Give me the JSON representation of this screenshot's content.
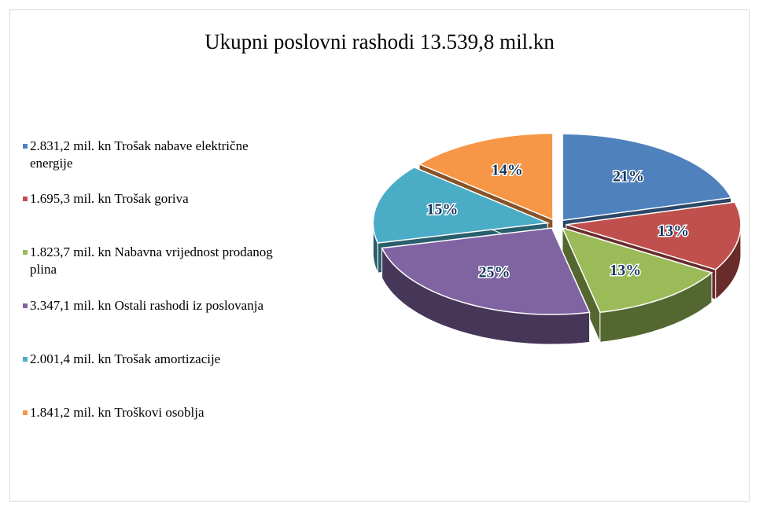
{
  "chart_data": {
    "type": "pie",
    "title": "Ukupni poslovni rashodi 13.539,8 mil.kn",
    "categories": [
      "2.831,2 mil. kn Trošak nabave električne energije",
      "1.695,3 mil. kn Trošak goriva",
      "1.823,7 mil. kn Nabavna vrijednost prodanog plina",
      "3.347,1 mil. kn Ostali rashodi iz poslovanja",
      "2.001,4 mil. kn Trošak amortizacije",
      "1.841,2 mil. kn Troškovi osoblja"
    ],
    "values": [
      21,
      13,
      13,
      25,
      15,
      14
    ],
    "value_labels": [
      "21%",
      "13%",
      "13%",
      "25%",
      "15%",
      "14%"
    ],
    "colors": [
      "#4f81bd",
      "#c0504d",
      "#9bbb59",
      "#8064a2",
      "#4bacc6",
      "#f79646"
    ],
    "legend": "left"
  }
}
